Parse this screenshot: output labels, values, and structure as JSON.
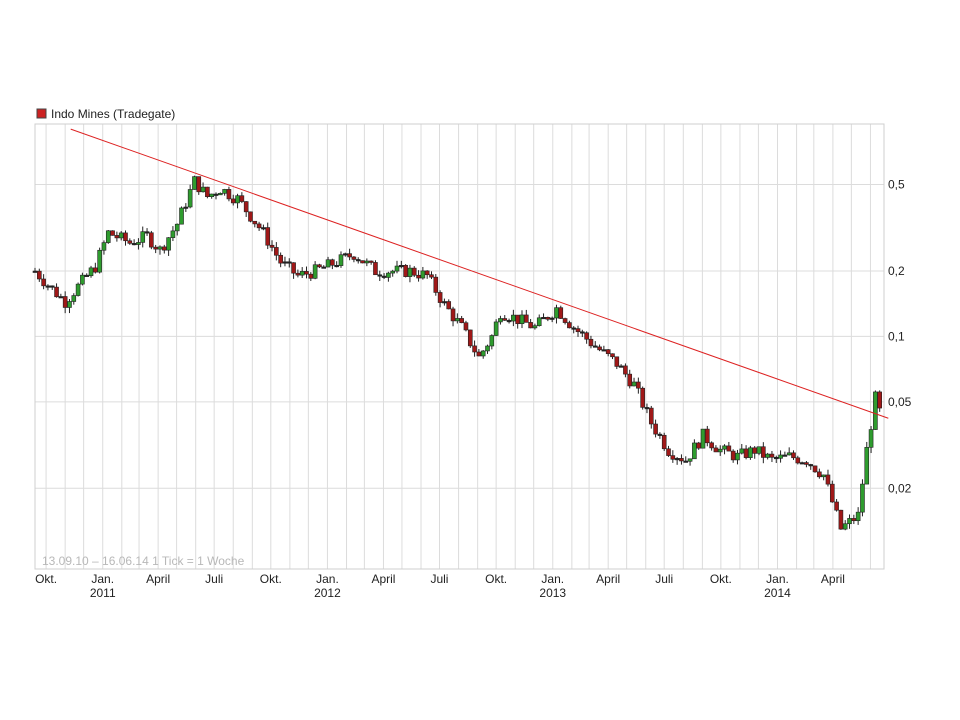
{
  "chart_data": {
    "type": "candlestick",
    "legend": {
      "label": "Indo Mines (Tradegate)",
      "color": "#cc2222"
    },
    "info_text": "13.09.10 – 16.06.14   1 Tick = 1 Woche",
    "y_scale": "log",
    "y_range": [
      0.0085,
      0.95
    ],
    "y_ticks": [
      {
        "value": 0.5,
        "label": "0,5"
      },
      {
        "value": 0.2,
        "label": "0,2"
      },
      {
        "value": 0.1,
        "label": "0,1"
      },
      {
        "value": 0.05,
        "label": "0,05"
      },
      {
        "value": 0.02,
        "label": "0,02"
      }
    ],
    "x_range": [
      "2010-09-13",
      "2014-06-23"
    ],
    "x_ticks": [
      {
        "date": "2010-10-01",
        "label": "Okt.",
        "year": ""
      },
      {
        "date": "2011-01-01",
        "label": "Jan.",
        "year": "2011"
      },
      {
        "date": "2011-04-01",
        "label": "April",
        "year": ""
      },
      {
        "date": "2011-07-01",
        "label": "Juli",
        "year": ""
      },
      {
        "date": "2011-10-01",
        "label": "Okt.",
        "year": ""
      },
      {
        "date": "2012-01-01",
        "label": "Jan.",
        "year": "2012"
      },
      {
        "date": "2012-04-01",
        "label": "April",
        "year": ""
      },
      {
        "date": "2012-07-01",
        "label": "Juli",
        "year": ""
      },
      {
        "date": "2012-10-01",
        "label": "Okt.",
        "year": ""
      },
      {
        "date": "2013-01-01",
        "label": "Jan.",
        "year": "2013"
      },
      {
        "date": "2013-04-01",
        "label": "April",
        "year": ""
      },
      {
        "date": "2013-07-01",
        "label": "Juli",
        "year": ""
      },
      {
        "date": "2013-10-01",
        "label": "Okt.",
        "year": ""
      },
      {
        "date": "2014-01-01",
        "label": "Jan.",
        "year": "2014"
      },
      {
        "date": "2014-04-01",
        "label": "April",
        "year": ""
      }
    ],
    "trendline": {
      "from": {
        "date": "2010-11-10",
        "value": 0.9
      },
      "to": {
        "date": "2014-06-30",
        "value": 0.042
      },
      "color": "#dd2222"
    },
    "series_anchors": [
      [
        "2010-09-13",
        0.2
      ],
      [
        "2010-10-11",
        0.165
      ],
      [
        "2010-11-01",
        0.145
      ],
      [
        "2010-11-22",
        0.17
      ],
      [
        "2010-12-20",
        0.21
      ],
      [
        "2011-01-10",
        0.3
      ],
      [
        "2011-02-14",
        0.27
      ],
      [
        "2011-03-14",
        0.29
      ],
      [
        "2011-04-04",
        0.25
      ],
      [
        "2011-05-02",
        0.33
      ],
      [
        "2011-05-30",
        0.52
      ],
      [
        "2011-06-20",
        0.44
      ],
      [
        "2011-07-11",
        0.48
      ],
      [
        "2011-08-08",
        0.43
      ],
      [
        "2011-08-29",
        0.36
      ],
      [
        "2011-09-19",
        0.3
      ],
      [
        "2011-10-17",
        0.22
      ],
      [
        "2011-11-14",
        0.19
      ],
      [
        "2011-12-12",
        0.2
      ],
      [
        "2012-01-16",
        0.22
      ],
      [
        "2012-02-13",
        0.24
      ],
      [
        "2012-03-19",
        0.2
      ],
      [
        "2012-04-16",
        0.2
      ],
      [
        "2012-05-14",
        0.2
      ],
      [
        "2012-06-11",
        0.19
      ],
      [
        "2012-07-09",
        0.14
      ],
      [
        "2012-08-06",
        0.11
      ],
      [
        "2012-09-03",
        0.08
      ],
      [
        "2012-09-24",
        0.1
      ],
      [
        "2012-10-08",
        0.13
      ],
      [
        "2012-11-05",
        0.12
      ],
      [
        "2012-12-03",
        0.11
      ],
      [
        "2013-01-07",
        0.135
      ],
      [
        "2013-02-04",
        0.11
      ],
      [
        "2013-03-11",
        0.09
      ],
      [
        "2013-04-15",
        0.075
      ],
      [
        "2013-05-13",
        0.06
      ],
      [
        "2013-06-10",
        0.04
      ],
      [
        "2013-07-08",
        0.03
      ],
      [
        "2013-08-05",
        0.027
      ],
      [
        "2013-09-02",
        0.035
      ],
      [
        "2013-09-30",
        0.03
      ],
      [
        "2013-10-28",
        0.028
      ],
      [
        "2013-11-25",
        0.03
      ],
      [
        "2013-12-23",
        0.027
      ],
      [
        "2014-01-20",
        0.028
      ],
      [
        "2014-02-17",
        0.027
      ],
      [
        "2014-03-17",
        0.023
      ],
      [
        "2014-04-14",
        0.013
      ],
      [
        "2014-05-12",
        0.015
      ],
      [
        "2014-05-26",
        0.03
      ],
      [
        "2014-06-09",
        0.052
      ],
      [
        "2014-06-16",
        0.045
      ]
    ],
    "candle_colors": {
      "up": "#2e9c2e",
      "down": "#a01818",
      "flat": "#222222"
    },
    "grid": true
  }
}
